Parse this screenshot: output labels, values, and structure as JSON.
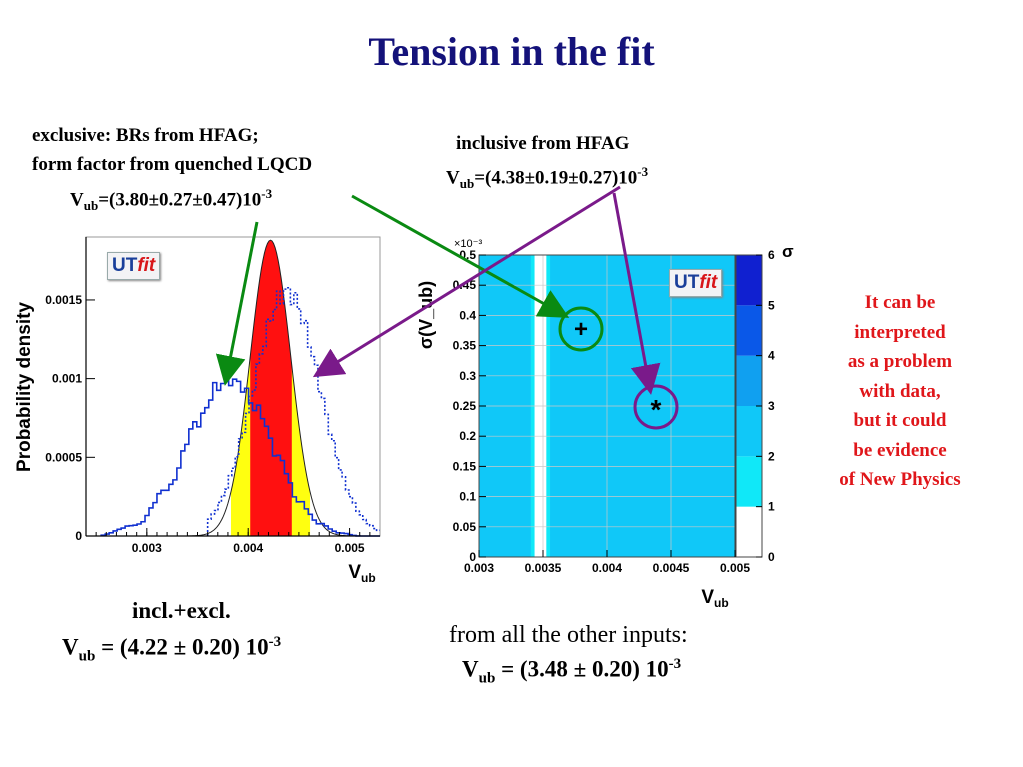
{
  "title": "Tension in the fit",
  "exclusive": {
    "line1": "exclusive: BRs from HFAG;",
    "line2": "form factor from quenched LQCD",
    "formula": {
      "v": "V",
      "sub": "ub",
      "value": "=(3.80±0.27±0.47)10",
      "exp": "-3"
    }
  },
  "inclusive": {
    "line1": "inclusive from HFAG",
    "formula": {
      "v": "V",
      "sub": "ub",
      "value": "=(4.38±0.19±0.27)10",
      "exp": "-3"
    }
  },
  "combined": {
    "line1": "incl.+excl.",
    "formula": {
      "v": "V",
      "sub": "ub",
      "value": " = (4.22 ± 0.20) 10",
      "exp": "-3"
    }
  },
  "others": {
    "line1": "from all the other inputs:",
    "formula": {
      "v": "V",
      "sub": "ub",
      "value": " = (3.48 ± 0.20) 10",
      "exp": "-3"
    }
  },
  "interpretation": [
    "It can be",
    "interpreted",
    "as a problem",
    "with data,",
    "but it could",
    "be evidence",
    "of New Physics"
  ],
  "logo": {
    "ut": "UT",
    "fit": "fit"
  },
  "colors": {
    "title": "#14127a",
    "note_red": "#e0161a",
    "arrow_green": "#0a8a12",
    "arrow_purple": "#7a1a8a"
  },
  "chart_data": [
    {
      "type": "line",
      "title": "",
      "xlabel": "V_ub",
      "ylabel": "Probability density",
      "xlim": [
        0.0024,
        0.0053
      ],
      "ylim": [
        0,
        0.0019
      ],
      "xticks": [
        "0.003",
        "0.004",
        "0.005"
      ],
      "yticks": [
        "0",
        "0.0005",
        "0.001",
        "0.0015"
      ],
      "series": [
        {
          "style": "solid blue step",
          "x": [
            0.0025,
            0.0029,
            0.0032,
            0.0035,
            0.0037,
            0.0038,
            0.0039,
            0.0041,
            0.0043,
            0.0045,
            0.0047,
            0.0049,
            0.0051,
            0.0053
          ],
          "y": [
            0.0,
            7e-05,
            0.0003,
            0.00072,
            0.00095,
            0.001,
            0.00097,
            0.0008,
            0.0005,
            0.00022,
            8e-05,
            2e-05,
            0.0,
            0.0
          ]
        },
        {
          "style": "dotted blue step",
          "x": [
            0.0036,
            0.0039,
            0.0041,
            0.0043,
            0.0044,
            0.0045,
            0.0046,
            0.0047,
            0.0049,
            0.0051,
            0.0053
          ],
          "y": [
            0.0,
            0.00018,
            0.0007,
            0.00135,
            0.00155,
            0.0015,
            0.0012,
            0.0008,
            0.0002,
            3e-05,
            0.0
          ],
          "mean": 0.00438,
          "sigma": 0.00033
        },
        {
          "style": "red/yellow filled gaussian",
          "mean": 0.00422,
          "sigma": 0.0002,
          "peak": 0.00188,
          "band_68": [
            0.00402,
            0.00443
          ],
          "band_95": [
            0.00383,
            0.00461
          ]
        }
      ]
    },
    {
      "type": "heatmap",
      "title": "",
      "xlabel": "V_ub",
      "ylabel": "σ(V_ub)",
      "xlim": [
        0.003,
        0.005
      ],
      "ylim": [
        0,
        0.5
      ],
      "y_multiplier": "×10⁻³",
      "xticks": [
        "0.003",
        "0.0035",
        "0.004",
        "0.0045",
        "0.005"
      ],
      "yticks": [
        "0",
        "0.05",
        "0.1",
        "0.15",
        "0.2",
        "0.25",
        "0.3",
        "0.35",
        "0.4",
        "0.45",
        "0.5"
      ],
      "colorbar": {
        "label": "σ",
        "ticks": [
          "0",
          "1",
          "2",
          "3",
          "4",
          "5",
          "6"
        ]
      },
      "center": 0.00348,
      "markers": [
        {
          "symbol": "+",
          "label": "exclusive",
          "x": 0.0038,
          "y": 0.00037
        },
        {
          "symbol": "*",
          "label": "inclusive",
          "x": 0.00438,
          "y": 0.00023
        }
      ]
    }
  ]
}
